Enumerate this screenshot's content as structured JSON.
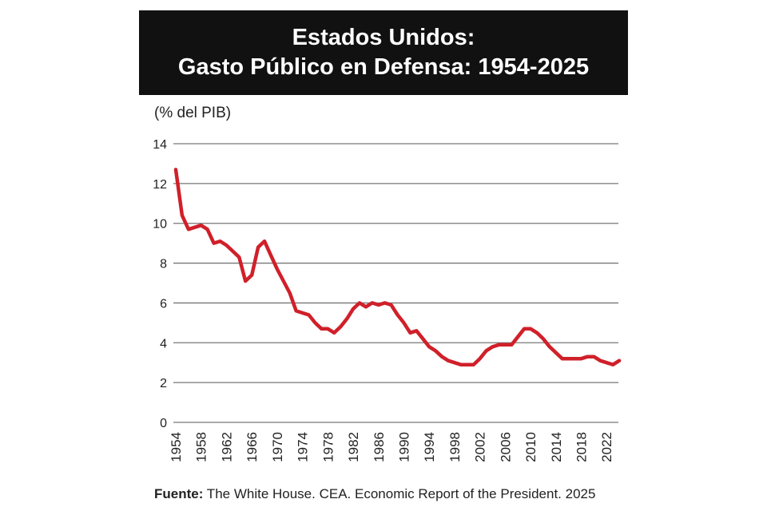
{
  "chart_data": {
    "type": "line",
    "title": "Estados Unidos:",
    "subtitle": "Gasto Público en Defensa: 1954-2025",
    "ylabel": "(% del PIB)",
    "xlabel": "",
    "ylim": [
      0,
      14
    ],
    "yticks": [
      0,
      2,
      4,
      6,
      8,
      10,
      12,
      14
    ],
    "xticks": [
      1954,
      1958,
      1962,
      1966,
      1970,
      1974,
      1978,
      1982,
      1986,
      1990,
      1994,
      1998,
      2002,
      2006,
      2010,
      2014,
      2018,
      2022
    ],
    "grid": "horizontal",
    "color": "#d0202a",
    "x": [
      1954,
      1955,
      1956,
      1957,
      1958,
      1959,
      1960,
      1961,
      1962,
      1963,
      1964,
      1965,
      1966,
      1967,
      1968,
      1969,
      1970,
      1971,
      1972,
      1973,
      1974,
      1975,
      1976,
      1977,
      1978,
      1979,
      1980,
      1981,
      1982,
      1983,
      1984,
      1985,
      1986,
      1987,
      1988,
      1989,
      1990,
      1991,
      1992,
      1993,
      1994,
      1995,
      1996,
      1997,
      1998,
      1999,
      2000,
      2001,
      2002,
      2003,
      2004,
      2005,
      2006,
      2007,
      2008,
      2009,
      2010,
      2011,
      2012,
      2013,
      2014,
      2015,
      2016,
      2017,
      2018,
      2019,
      2020,
      2021,
      2022,
      2023,
      2024
    ],
    "values": [
      12.7,
      10.4,
      9.7,
      9.8,
      9.9,
      9.7,
      9.0,
      9.1,
      8.9,
      8.6,
      8.3,
      7.1,
      7.4,
      8.8,
      9.1,
      8.4,
      7.7,
      7.1,
      6.5,
      5.6,
      5.5,
      5.4,
      5.0,
      4.7,
      4.7,
      4.5,
      4.8,
      5.2,
      5.7,
      6.0,
      5.8,
      6.0,
      5.9,
      6.0,
      5.9,
      5.4,
      5.0,
      4.5,
      4.6,
      4.2,
      3.8,
      3.6,
      3.3,
      3.1,
      3.0,
      2.9,
      2.9,
      2.9,
      3.2,
      3.6,
      3.8,
      3.9,
      3.9,
      3.9,
      4.3,
      4.7,
      4.7,
      4.5,
      4.2,
      3.8,
      3.5,
      3.2,
      3.2,
      3.2,
      3.2,
      3.3,
      3.3,
      3.1,
      3.0,
      2.9,
      3.1
    ]
  },
  "source": {
    "label": "Fuente:",
    "text": " The White House. CEA. Economic Report of the President. 2025"
  }
}
